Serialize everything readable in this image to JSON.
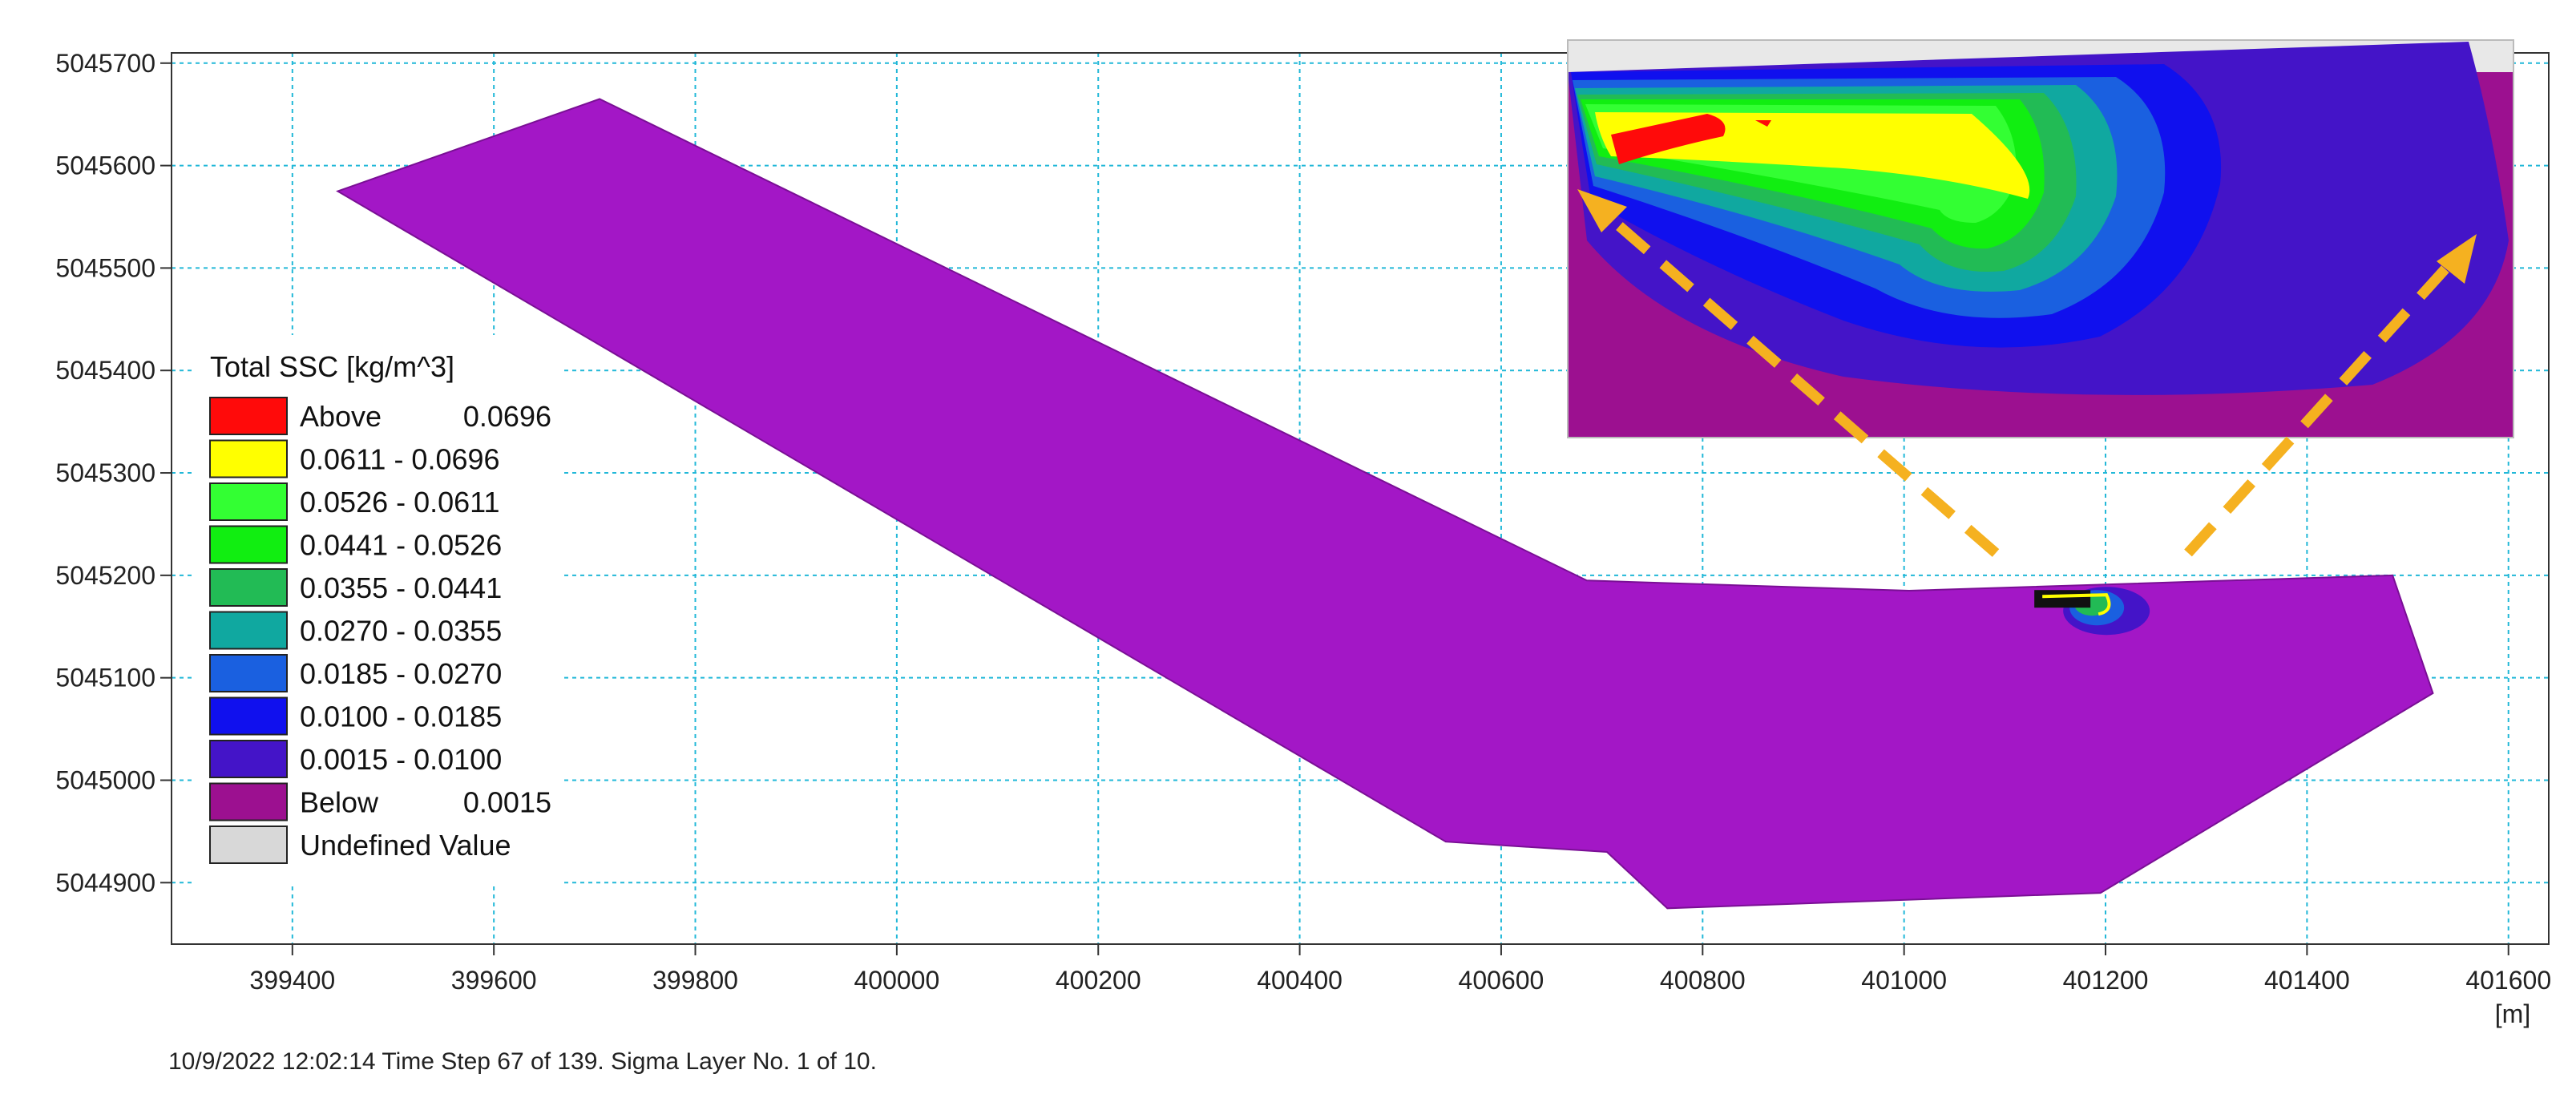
{
  "chart_data": {
    "type": "contour-map",
    "x_ticks": [
      399400,
      399600,
      399800,
      400000,
      400200,
      400400,
      400600,
      400800,
      401000,
      401200,
      401400,
      401600
    ],
    "y_ticks": [
      5044900,
      5045000,
      5045100,
      5045200,
      5045300,
      5045400,
      5045500,
      5045600,
      5045700
    ],
    "x_range": [
      399280,
      401640
    ],
    "y_range": [
      5044840,
      5045710
    ],
    "x_unit": "[m]",
    "grid": true,
    "domain_polygon": [
      [
        399445,
        5045575
      ],
      [
        399705,
        5045665
      ],
      [
        400685,
        5045195
      ],
      [
        401005,
        5045185
      ],
      [
        401485,
        5045200
      ],
      [
        401525,
        5045085
      ],
      [
        401195,
        5044890
      ],
      [
        400765,
        5044875
      ],
      [
        400705,
        5044930
      ],
      [
        400545,
        5044940
      ]
    ],
    "plume_center": [
      401185,
      5045170
    ],
    "legend": {
      "title": "Total SSC [kg/m^3]",
      "position": "left",
      "entries": [
        {
          "label": "Above",
          "value": "0.0696",
          "color": "#ff0a0a"
        },
        {
          "label": "0.0611 - 0.0696",
          "value": "",
          "color": "#ffff00"
        },
        {
          "label": "0.0526 - 0.0611",
          "value": "",
          "color": "#33ff33"
        },
        {
          "label": "0.0441 - 0.0526",
          "value": "",
          "color": "#11ee11"
        },
        {
          "label": "0.0355 - 0.0441",
          "value": "",
          "color": "#22bb55"
        },
        {
          "label": "0.0270 - 0.0355",
          "value": "",
          "color": "#10a8a0"
        },
        {
          "label": "0.0185 - 0.0270",
          "value": "",
          "color": "#1a60e0"
        },
        {
          "label": "0.0100 - 0.0185",
          "value": "",
          "color": "#1010ee"
        },
        {
          "label": "0.0015 - 0.0100",
          "value": "",
          "color": "#4414c8"
        },
        {
          "label": "Below",
          "value": "0.0015",
          "color": "#9c1090"
        },
        {
          "label": "Undefined Value",
          "value": "",
          "color": "#d8d8d8"
        }
      ]
    },
    "footer": "10/9/2022 12:02:14  Time Step 67 of 139. Sigma Layer No. 1 of 10."
  },
  "colors": {
    "domain_fill": "#a317c6",
    "grid": "#22b8d8",
    "inset_background": "#9c1090",
    "arrow": "#f5b120"
  },
  "inset": {
    "description_icon": "zoom-inset"
  }
}
